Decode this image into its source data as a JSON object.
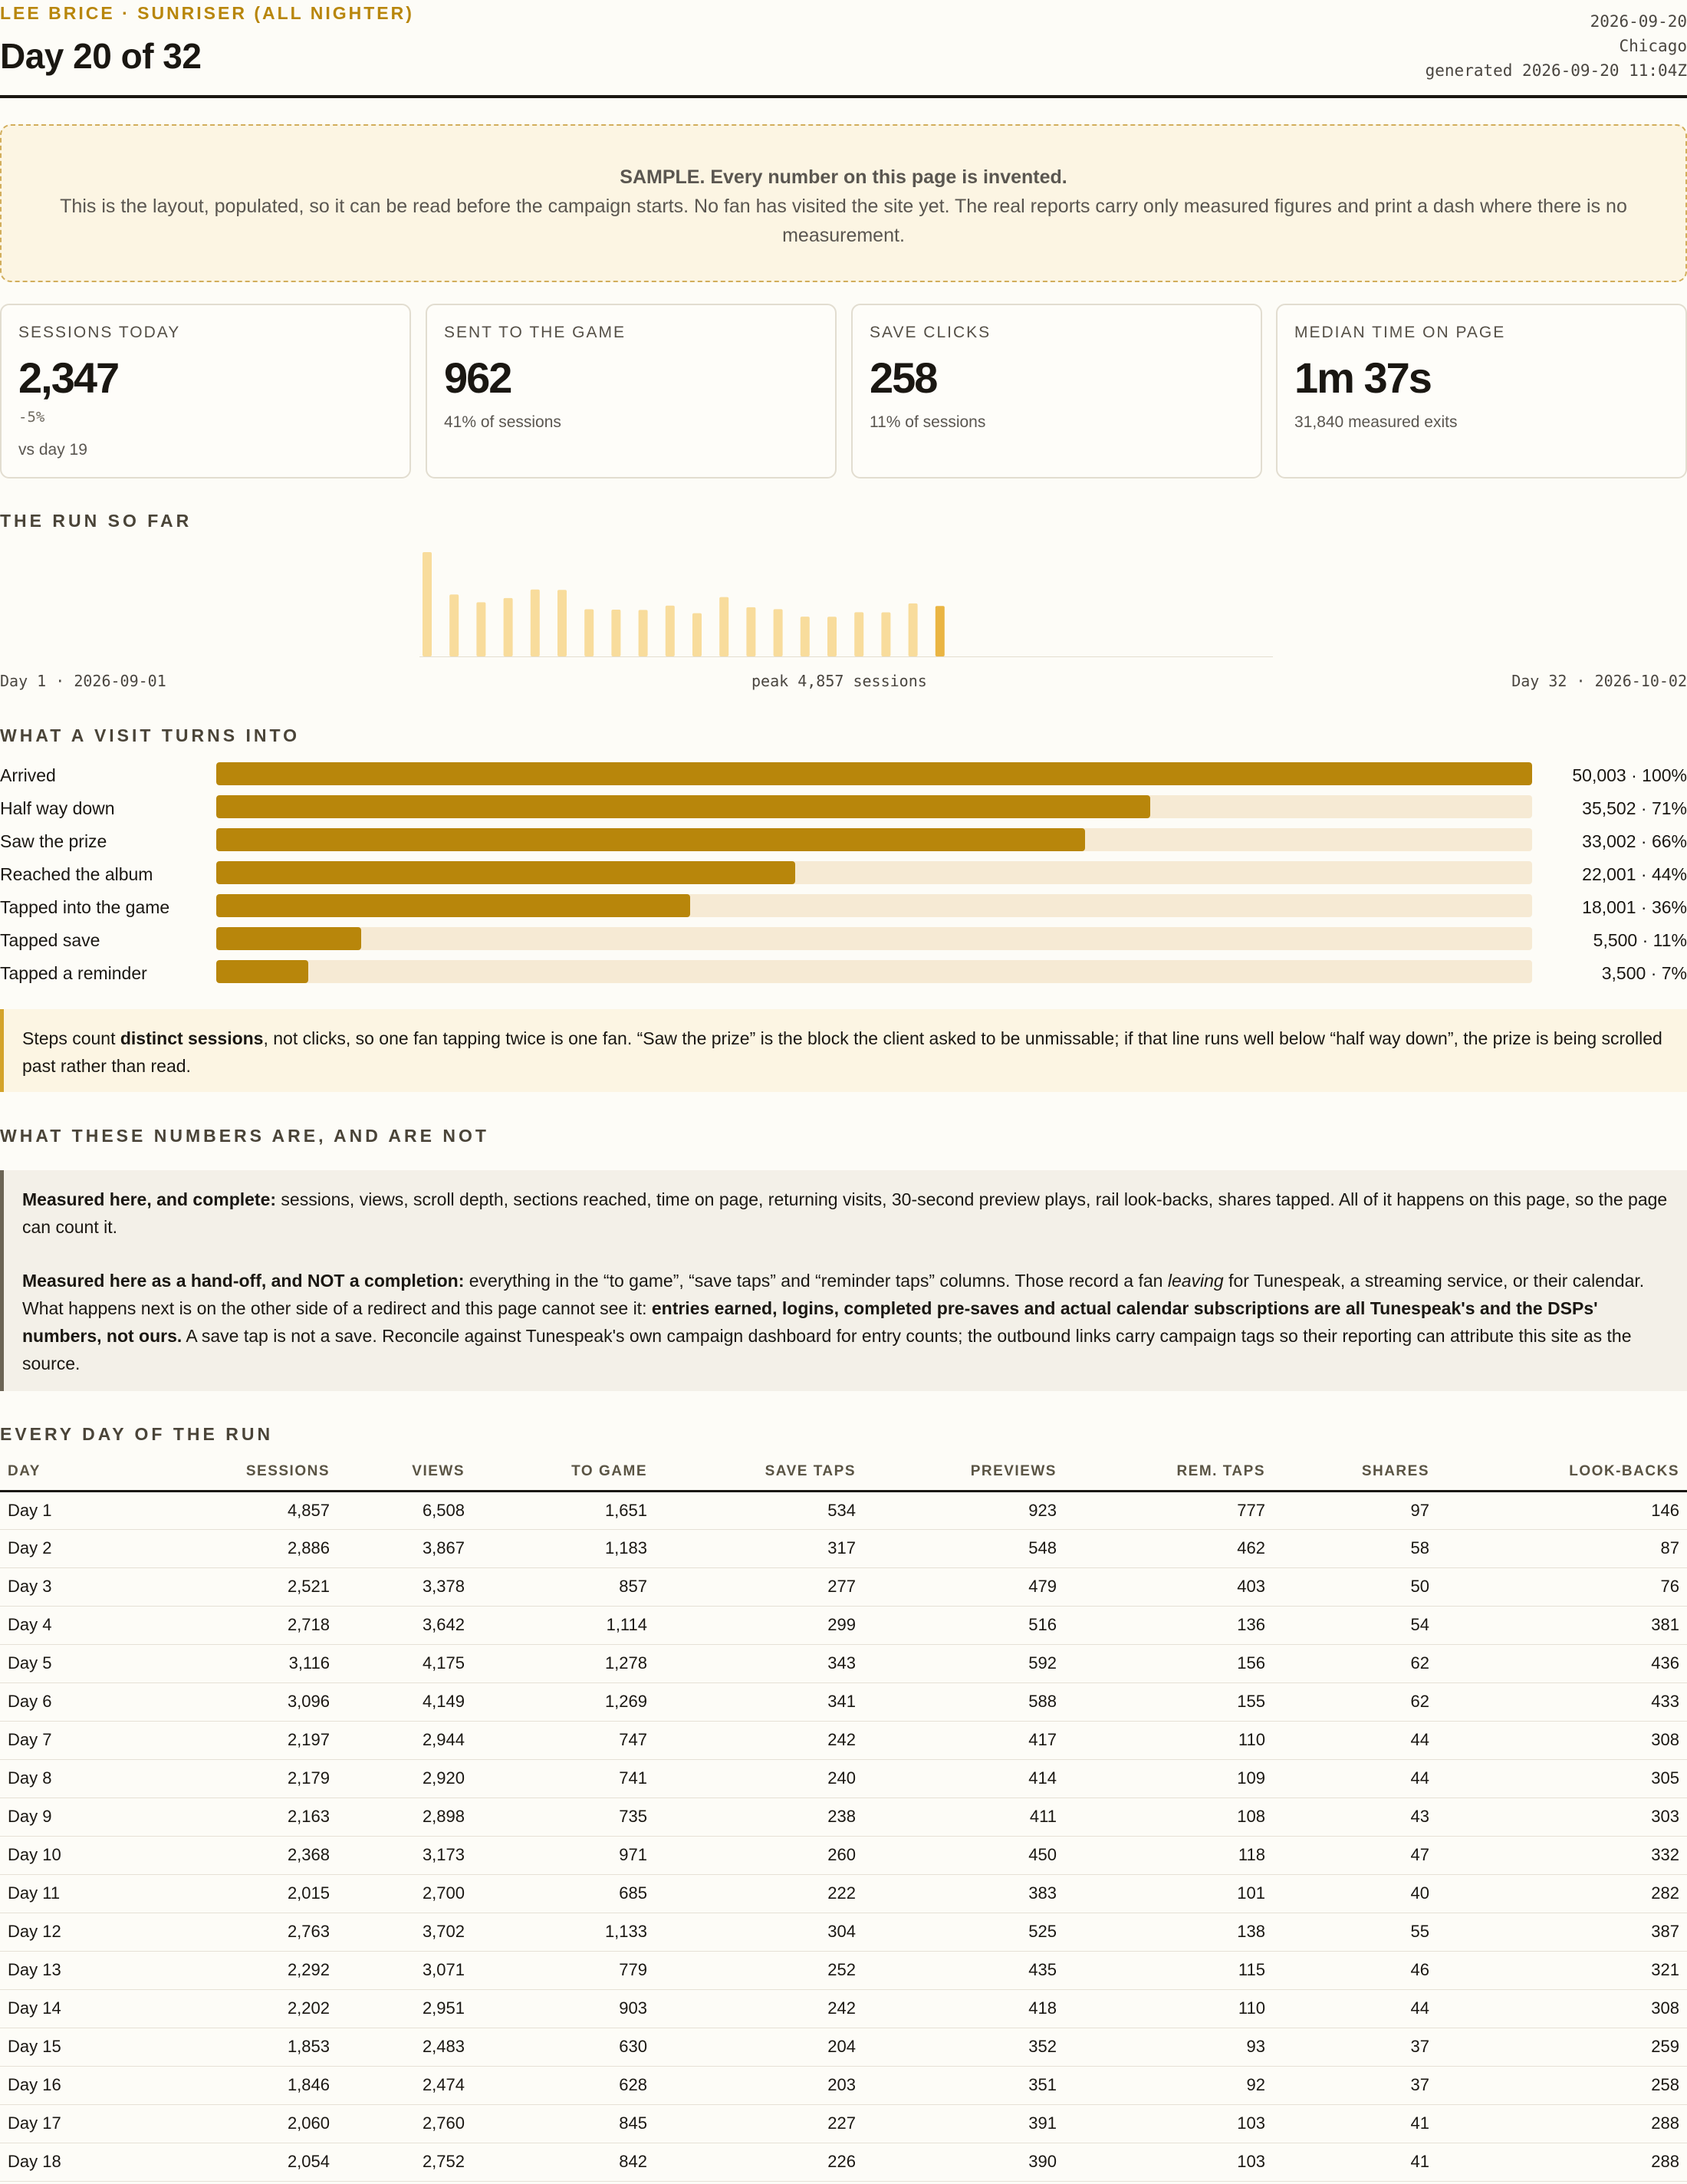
{
  "header": {
    "eyebrow": "LEE BRICE · SUNRISER (ALL NIGHTER)",
    "title": "Day 20 of 32",
    "date": "2026-09-20",
    "city": "Chicago",
    "generated": "generated 2026-09-20 11:04Z"
  },
  "banner": {
    "title": "SAMPLE. Every number on this page is invented.",
    "body": "This is the layout, populated, so it can be read before the campaign starts. No fan has visited the site yet. The real reports carry only measured figures and print a dash where there is no measurement."
  },
  "kpis": [
    {
      "label": "SESSIONS TODAY",
      "value": "2,347",
      "delta": "-5%",
      "sub": "vs day 19"
    },
    {
      "label": "SENT TO THE GAME",
      "value": "962",
      "sub": "41% of sessions"
    },
    {
      "label": "SAVE CLICKS",
      "value": "258",
      "sub": "11% of sessions"
    },
    {
      "label": "MEDIAN TIME ON PAGE",
      "value": "1m 37s",
      "sub": "31,840 measured exits"
    }
  ],
  "run": {
    "heading": "THE RUN SO FAR",
    "start_label": "Day 1 · 2026-09-01",
    "peak_label": "peak 4,857 sessions",
    "end_label": "Day 32 · 2026-10-02",
    "colors": {
      "past": "#f8dc9c",
      "today": "#eab543",
      "baseline": "#e4ded0"
    }
  },
  "chart_data": {
    "type": "bar",
    "categories": [
      "Day 1",
      "Day 2",
      "Day 3",
      "Day 4",
      "Day 5",
      "Day 6",
      "Day 7",
      "Day 8",
      "Day 9",
      "Day 10",
      "Day 11",
      "Day 12",
      "Day 13",
      "Day 14",
      "Day 15",
      "Day 16",
      "Day 17",
      "Day 18",
      "Day 19",
      "Day 20",
      "Day 21",
      "Day 22",
      "Day 23",
      "Day 24",
      "Day 25",
      "Day 26",
      "Day 27",
      "Day 28",
      "Day 29",
      "Day 30",
      "Day 31",
      "Day 32"
    ],
    "values": [
      4857,
      2886,
      2521,
      2718,
      3116,
      3096,
      2197,
      2179,
      2163,
      2368,
      2015,
      2763,
      2292,
      2202,
      1853,
      1846,
      2060,
      2054,
      2470,
      2347,
      null,
      null,
      null,
      null,
      null,
      null,
      null,
      null,
      null,
      null,
      null,
      null
    ],
    "ylim": [
      0,
      4857
    ],
    "highlight": "Day 20"
  },
  "funnel": {
    "heading": "WHAT A VISIT TURNS INTO",
    "steps": [
      {
        "label": "Arrived",
        "value": "50,003 · 100%",
        "pct": 100
      },
      {
        "label": "Half way down",
        "value": "35,502 · 71%",
        "pct": 71
      },
      {
        "label": "Saw the prize",
        "value": "33,002 · 66%",
        "pct": 66
      },
      {
        "label": "Reached the album",
        "value": "22,001 · 44%",
        "pct": 44
      },
      {
        "label": "Tapped into the game",
        "value": "18,001 · 36%",
        "pct": 36
      },
      {
        "label": "Tapped save",
        "value": "5,500 · 11%",
        "pct": 11
      },
      {
        "label": "Tapped a reminder",
        "value": "3,500 · 7%",
        "pct": 7
      }
    ],
    "note": {
      "a": "Steps count ",
      "b": "distinct sessions",
      "c": ", not clicks, so one fan tapping twice is one fan. “Saw the prize” is the block the client asked to be unmissable; if that line runs well below “half way down”, the prize is being scrolled past rather than read."
    }
  },
  "numbers": {
    "heading": "WHAT THESE NUMBERS ARE, AND ARE NOT",
    "p1_bold": "Measured here, and complete:",
    "p1_text": " sessions, views, scroll depth, sections reached, time on page, returning visits, 30-second preview plays, rail look-backs, shares tapped. All of it happens on this page, so the page can count it.",
    "p2_bold": "Measured here as a hand-off, and NOT a completion:",
    "p2_text1": " everything in the “to game”, “save taps” and “reminder taps” columns. Those record a fan ",
    "p2_italic": "leaving",
    "p2_text2": " for Tunespeak, a streaming service, or their calendar. What happens next is on the other side of a redirect and this page cannot see it: ",
    "p2_bold2": "entries earned, logins, completed pre-saves and actual calendar subscriptions are all Tunespeak's and the DSPs' numbers, not ours.",
    "p2_text3": " A save tap is not a save. Reconcile against Tunespeak's own campaign dashboard for entry counts; the outbound links carry campaign tags so their reporting can attribute this site as the source."
  },
  "table": {
    "heading": "EVERY DAY OF THE RUN",
    "columns": [
      "DAY",
      "SESSIONS",
      "VIEWS",
      "TO GAME",
      "SAVE TAPS",
      "PREVIEWS",
      "REM. TAPS",
      "SHARES",
      "LOOK-BACKS"
    ],
    "rows": [
      [
        "Day 1",
        "4,857",
        "6,508",
        "1,651",
        "534",
        "923",
        "777",
        "97",
        "146"
      ],
      [
        "Day 2",
        "2,886",
        "3,867",
        "1,183",
        "317",
        "548",
        "462",
        "58",
        "87"
      ],
      [
        "Day 3",
        "2,521",
        "3,378",
        "857",
        "277",
        "479",
        "403",
        "50",
        "76"
      ],
      [
        "Day 4",
        "2,718",
        "3,642",
        "1,114",
        "299",
        "516",
        "136",
        "54",
        "381"
      ],
      [
        "Day 5",
        "3,116",
        "4,175",
        "1,278",
        "343",
        "592",
        "156",
        "62",
        "436"
      ],
      [
        "Day 6",
        "3,096",
        "4,149",
        "1,269",
        "341",
        "588",
        "155",
        "62",
        "433"
      ],
      [
        "Day 7",
        "2,197",
        "2,944",
        "747",
        "242",
        "417",
        "110",
        "44",
        "308"
      ],
      [
        "Day 8",
        "2,179",
        "2,920",
        "741",
        "240",
        "414",
        "109",
        "44",
        "305"
      ],
      [
        "Day 9",
        "2,163",
        "2,898",
        "735",
        "238",
        "411",
        "108",
        "43",
        "303"
      ],
      [
        "Day 10",
        "2,368",
        "3,173",
        "971",
        "260",
        "450",
        "118",
        "47",
        "332"
      ],
      [
        "Day 11",
        "2,015",
        "2,700",
        "685",
        "222",
        "383",
        "101",
        "40",
        "282"
      ],
      [
        "Day 12",
        "2,763",
        "3,702",
        "1,133",
        "304",
        "525",
        "138",
        "55",
        "387"
      ],
      [
        "Day 13",
        "2,292",
        "3,071",
        "779",
        "252",
        "435",
        "115",
        "46",
        "321"
      ],
      [
        "Day 14",
        "2,202",
        "2,951",
        "903",
        "242",
        "418",
        "110",
        "44",
        "308"
      ],
      [
        "Day 15",
        "1,853",
        "2,483",
        "630",
        "204",
        "352",
        "93",
        "37",
        "259"
      ],
      [
        "Day 16",
        "1,846",
        "2,474",
        "628",
        "203",
        "351",
        "92",
        "37",
        "258"
      ],
      [
        "Day 17",
        "2,060",
        "2,760",
        "845",
        "227",
        "391",
        "103",
        "41",
        "288"
      ],
      [
        "Day 18",
        "2,054",
        "2,752",
        "842",
        "226",
        "390",
        "103",
        "41",
        "288"
      ]
    ]
  }
}
